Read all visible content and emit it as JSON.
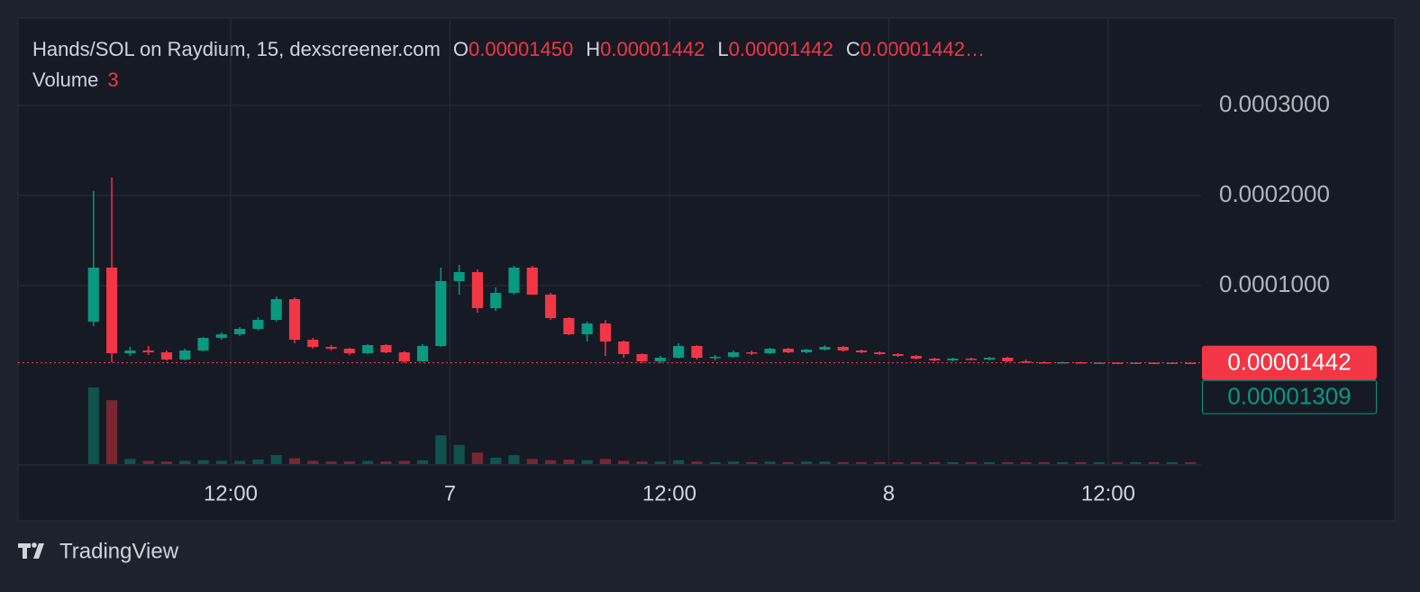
{
  "header": {
    "symbol": "Hands/SOL on Raydium, 15, dexscreener.com",
    "o_label": "O",
    "o": "0.00001450",
    "h_label": "H",
    "h": "0.00001442",
    "l_label": "L",
    "l": "0.00001442",
    "c_label": "C",
    "c": "0.00001442…",
    "volume_label": "Volume",
    "volume": "3"
  },
  "footer": {
    "brand": "TradingView"
  },
  "chart_data": {
    "type": "candlestick",
    "colors": {
      "up": "#089981",
      "down": "#f23645"
    },
    "xlim": [
      0.37,
      65.08
    ],
    "ylim": [
      -9.8e-05,
      0.000397
    ],
    "xticks": [
      {
        "value": 12,
        "label": "12:00"
      },
      {
        "value": 24,
        "label": "7"
      },
      {
        "value": 36,
        "label": "12:00"
      },
      {
        "value": 48,
        "label": "8"
      },
      {
        "value": 60,
        "label": "12:00"
      }
    ],
    "yticks": [
      {
        "value": 0.0003,
        "label": "0.0003000"
      },
      {
        "value": 0.0002,
        "label": "0.0002000"
      },
      {
        "value": 0.0001,
        "label": "0.0001000"
      }
    ],
    "grid": true,
    "price_labels": [
      {
        "value": 1.442e-05,
        "label": "0.00001442",
        "color": "#f23645"
      },
      {
        "value": 1.309e-05,
        "label": "0.00001309",
        "color": "#089981"
      }
    ],
    "x": [
      4.5,
      5.5,
      6.5,
      7.5,
      8.5,
      9.5,
      10.5,
      11.5,
      12.5,
      13.5,
      14.5,
      15.5,
      16.5,
      17.5,
      18.5,
      19.5,
      20.5,
      21.5,
      22.5,
      23.5,
      24.5,
      25.5,
      26.5,
      27.5,
      28.5,
      29.5,
      30.5,
      31.5,
      32.5,
      33.5,
      34.5,
      35.5,
      36.5,
      37.5,
      38.5,
      39.5,
      40.5,
      41.5,
      42.5,
      43.5,
      44.5,
      45.5,
      46.5,
      47.5,
      48.5,
      49.5,
      50.5,
      51.5,
      52.5,
      53.5,
      54.5,
      55.5,
      56.5,
      57.5,
      58.5,
      59.5,
      60.5,
      61.5,
      62.5,
      63.5,
      64.5
    ],
    "open": [
      6e-05,
      0.00012,
      2.5e-05,
      2.8e-05,
      2.6e-05,
      1.8e-05,
      2.8e-05,
      4.2e-05,
      4.6e-05,
      5.2e-05,
      6.2e-05,
      8.5e-05,
      4e-05,
      3.2e-05,
      3e-05,
      2.5e-05,
      3.4e-05,
      2.6e-05,
      1.6e-05,
      3.3e-05,
      0.000105,
      0.000115,
      7.5e-05,
      9.2e-05,
      0.00012,
      9e-05,
      6.4e-05,
      4.6e-05,
      5.8e-05,
      3.8e-05,
      2.4e-05,
      1.6e-05,
      2e-05,
      3.3e-05,
      2e-05,
      2.1e-05,
      2.6e-05,
      2.5e-05,
      3e-05,
      2.6e-05,
      2.9e-05,
      3.2e-05,
      2.8e-05,
      2.6e-05,
      2.4e-05,
      2.2e-05,
      1.9e-05,
      1.7e-05,
      1.9e-05,
      1.8e-05,
      2e-05,
      1.6e-05,
      1.5e-05,
      1.45e-05,
      1.5e-05,
      1.44e-05,
      1.46e-05,
      1.42e-05,
      1.45e-05,
      1.43e-05,
      1.45e-05
    ],
    "high": [
      0.000205,
      0.00022,
      3.2e-05,
      3.3e-05,
      2.8e-05,
      3e-05,
      4.3e-05,
      4.8e-05,
      5.4e-05,
      6.5e-05,
      8.8e-05,
      8.7e-05,
      4.2e-05,
      3.4e-05,
      3.1e-05,
      3.5e-05,
      3.5e-05,
      2.7e-05,
      3.5e-05,
      0.00012,
      0.000123,
      0.000118,
      9.8e-05,
      0.000122,
      0.000122,
      9.2e-05,
      6.5e-05,
      6e-05,
      6.2e-05,
      3.9e-05,
      2.5e-05,
      2.2e-05,
      3.6e-05,
      3.4e-05,
      2.3e-05,
      2.8e-05,
      2.8e-05,
      3.1e-05,
      3.1e-05,
      3e-05,
      3.4e-05,
      3.3e-05,
      2.9e-05,
      2.7e-05,
      2.5e-05,
      2.3e-05,
      2e-05,
      2e-05,
      2e-05,
      2.1e-05,
      2.1e-05,
      1.8e-05,
      1.6e-05,
      1.55e-05,
      1.55e-05,
      1.5e-05,
      1.48e-05,
      1.47e-05,
      1.46e-05,
      1.47e-05,
      1.442e-05
    ],
    "low": [
      5.5e-05,
      1.5e-05,
      2.2e-05,
      2.3e-05,
      1.7e-05,
      1.7e-05,
      2.7e-05,
      4e-05,
      4.4e-05,
      5e-05,
      6e-05,
      3.6e-05,
      3e-05,
      2.8e-05,
      2.3e-05,
      2.4e-05,
      2.5e-05,
      1.4e-05,
      1.5e-05,
      3.2e-05,
      9e-05,
      7e-05,
      7.2e-05,
      9e-05,
      9e-05,
      6.2e-05,
      4.5e-05,
      3.8e-05,
      2.2e-05,
      2e-05,
      1.4e-05,
      1.4e-05,
      1.9e-05,
      1.8e-05,
      1.7e-05,
      2e-05,
      2.3e-05,
      2.4e-05,
      2.5e-05,
      2.5e-05,
      2.8e-05,
      2.7e-05,
      2.5e-05,
      2.3e-05,
      2.1e-05,
      1.8e-05,
      1.6e-05,
      1.6e-05,
      1.7e-05,
      1.7e-05,
      1.5e-05,
      1.4e-05,
      1.35e-05,
      1.4e-05,
      1.42e-05,
      1.42e-05,
      1.4e-05,
      1.41e-05,
      1.4e-05,
      1.42e-05,
      1.442e-05
    ],
    "close": [
      0.00012,
      2.5e-05,
      2.8e-05,
      2.6e-05,
      1.8e-05,
      2.8e-05,
      4.2e-05,
      4.6e-05,
      5.2e-05,
      6.2e-05,
      8.5e-05,
      4e-05,
      3.2e-05,
      3e-05,
      2.5e-05,
      3.4e-05,
      2.6e-05,
      1.6e-05,
      3.3e-05,
      0.000105,
      0.000115,
      7.5e-05,
      9.2e-05,
      0.00012,
      9e-05,
      6.4e-05,
      4.6e-05,
      5.8e-05,
      3.8e-05,
      2.4e-05,
      1.6e-05,
      2e-05,
      3.3e-05,
      2e-05,
      2.1e-05,
      2.6e-05,
      2.5e-05,
      3e-05,
      2.6e-05,
      2.9e-05,
      3.2e-05,
      2.8e-05,
      2.6e-05,
      2.4e-05,
      2.2e-05,
      1.9e-05,
      1.7e-05,
      1.9e-05,
      1.8e-05,
      2e-05,
      1.6e-05,
      1.5e-05,
      1.45e-05,
      1.5e-05,
      1.44e-05,
      1.46e-05,
      1.42e-05,
      1.45e-05,
      1.43e-05,
      1.45e-05,
      1.442e-05
    ],
    "volume": [
      120,
      100,
      8,
      5,
      4,
      5,
      6,
      5,
      5,
      7,
      14,
      9,
      5,
      4,
      4,
      5,
      4,
      5,
      6,
      45,
      30,
      18,
      10,
      14,
      8,
      6,
      7,
      6,
      8,
      5,
      4,
      4,
      6,
      4,
      3,
      4,
      3,
      4,
      3,
      4,
      4,
      3,
      3,
      3,
      3,
      3,
      3,
      3,
      3,
      3,
      3,
      3,
      3,
      3,
      3,
      3,
      3,
      3,
      3,
      3,
      3
    ]
  }
}
